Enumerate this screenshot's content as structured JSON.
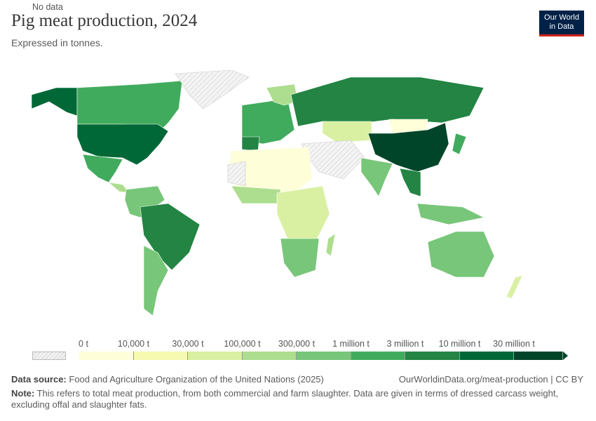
{
  "header": {
    "title": "Pig meat production, 2024",
    "subtitle": "Expressed in tonnes.",
    "logo": "Our World in Data"
  },
  "legend": {
    "no_data_label": "No data",
    "bins": [
      {
        "label": "0 t",
        "color": "#fefed8"
      },
      {
        "label": "10,000 t",
        "color": "#f6fab0"
      },
      {
        "label": "30,000 t",
        "color": "#d9f0a3"
      },
      {
        "label": "100,000 t",
        "color": "#addd8e"
      },
      {
        "label": "300,000 t",
        "color": "#78c679"
      },
      {
        "label": "1 million t",
        "color": "#41ab5d"
      },
      {
        "label": "3 million t",
        "color": "#238443"
      },
      {
        "label": "10 million t",
        "color": "#006837"
      },
      {
        "label": "30 million t",
        "color": "#004529"
      }
    ]
  },
  "footer": {
    "source_label": "Data source:",
    "source": "Food and Agriculture Organization of the United Nations (2025)",
    "url": "OurWorldinData.org/meat-production | CC BY",
    "note_label": "Note:",
    "note": "This refers to total meat production, from both commercial and farm slaughter. Data are given in terms of dressed carcass weight, excluding offal and slaughter fats."
  },
  "map_data": [
    {
      "region": "China",
      "bin": 8
    },
    {
      "region": "United States",
      "bin": 7
    },
    {
      "region": "Russia",
      "bin": 6
    },
    {
      "region": "Brazil",
      "bin": 6
    },
    {
      "region": "Canada",
      "bin": 5
    },
    {
      "region": "Mexico",
      "bin": 5
    },
    {
      "region": "Spain",
      "bin": 6
    },
    {
      "region": "Germany",
      "bin": 6
    },
    {
      "region": "Vietnam",
      "bin": 6
    },
    {
      "region": "Australia",
      "bin": 4
    },
    {
      "region": "India",
      "bin": 4
    },
    {
      "region": "Argentina",
      "bin": 4
    },
    {
      "region": "Greenland",
      "bin": null
    },
    {
      "region": "Mongolia",
      "bin": 0
    },
    {
      "region": "Kazakhstan",
      "bin": 2
    }
  ]
}
